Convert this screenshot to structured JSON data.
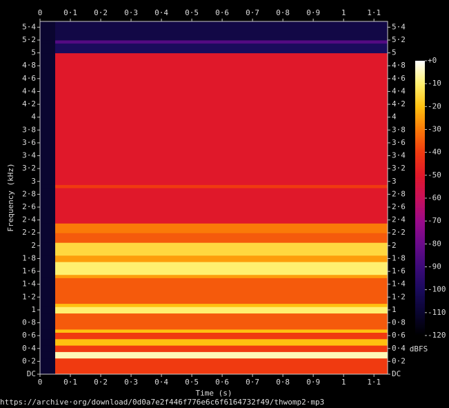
{
  "chart_data": {
    "type": "spectrogram",
    "xlabel": "Time (s)",
    "ylabel": "Frequency (kHz)",
    "colorbar_label": "dBFS",
    "footer": "https://archive·org/download/0d0a7e2f446f776e6c6f6164732f49/thwomp2·mp3",
    "xlim": [
      0,
      1.145
    ],
    "ylim": [
      0,
      5.49
    ],
    "xticks": [
      0,
      {
        "value": 0.1,
        "label": "0·1"
      },
      {
        "value": 0.2,
        "label": "0·2"
      },
      {
        "value": 0.3,
        "label": "0·3"
      },
      {
        "value": 0.4,
        "label": "0·4"
      },
      {
        "value": 0.5,
        "label": "0·5"
      },
      {
        "value": 0.6,
        "label": "0·6"
      },
      {
        "value": 0.7,
        "label": "0·7"
      },
      {
        "value": 0.8,
        "label": "0·8"
      },
      {
        "value": 0.9,
        "label": "0·9"
      },
      1,
      {
        "value": 1.1,
        "label": "1·1"
      }
    ],
    "yticks": [
      {
        "value": 0,
        "label": "DC"
      },
      {
        "value": 0.2,
        "label": "0·2"
      },
      {
        "value": 0.4,
        "label": "0·4"
      },
      {
        "value": 0.6,
        "label": "0·6"
      },
      {
        "value": 0.8,
        "label": "0·8"
      },
      1,
      {
        "value": 1.2,
        "label": "1·2"
      },
      {
        "value": 1.4,
        "label": "1·4"
      },
      {
        "value": 1.6,
        "label": "1·6"
      },
      {
        "value": 1.8,
        "label": "1·8"
      },
      2,
      {
        "value": 2.2,
        "label": "2·2"
      },
      {
        "value": 2.4,
        "label": "2·4"
      },
      {
        "value": 2.6,
        "label": "2·6"
      },
      {
        "value": 2.8,
        "label": "2·8"
      },
      3,
      {
        "value": 3.2,
        "label": "3·2"
      },
      {
        "value": 3.4,
        "label": "3·4"
      },
      {
        "value": 3.6,
        "label": "3·6"
      },
      {
        "value": 3.8,
        "label": "3·8"
      },
      4,
      {
        "value": 4.2,
        "label": "4·2"
      },
      {
        "value": 4.4,
        "label": "4·4"
      },
      {
        "value": 4.6,
        "label": "4·6"
      },
      {
        "value": 4.8,
        "label": "4·8"
      },
      5,
      {
        "value": 5.2,
        "label": "5·2"
      },
      {
        "value": 5.4,
        "label": "5·4"
      }
    ],
    "time_bins": [
      0,
      0.05,
      1.145
    ],
    "freq_bins": [
      0,
      0.25,
      0.35,
      0.45,
      0.55,
      0.65,
      0.7,
      0.95,
      1.05,
      1.1,
      1.5,
      1.55,
      1.75,
      1.85,
      2.05,
      2.2,
      2.35,
      2.9,
      2.95,
      5.0,
      5.15,
      5.2,
      5.49
    ],
    "z": [
      [
        -110,
        -40
      ],
      [
        -110,
        -5
      ],
      [
        -110,
        -40
      ],
      [
        -110,
        -20
      ],
      [
        -110,
        -40
      ],
      [
        -110,
        -20
      ],
      [
        -110,
        -35
      ],
      [
        -110,
        -10
      ],
      [
        -110,
        -20
      ],
      [
        -110,
        -35
      ],
      [
        -110,
        -25
      ],
      [
        -110,
        -10
      ],
      [
        -110,
        -25
      ],
      [
        -110,
        -15
      ],
      [
        -110,
        -35
      ],
      [
        -110,
        -30
      ],
      [
        -110,
        -50
      ],
      [
        -110,
        -40
      ],
      [
        -110,
        -50
      ],
      [
        -110,
        -100
      ],
      [
        -110,
        -85
      ],
      [
        -110,
        -105
      ]
    ],
    "clim": [
      -120,
      0
    ],
    "cticks": [
      {
        "value": 0,
        "label": "+0"
      },
      -10,
      -20,
      -30,
      -40,
      -50,
      -60,
      -70,
      -80,
      -90,
      -100,
      -110,
      -120
    ],
    "colorscale": [
      [
        -120,
        "#000000"
      ],
      [
        -110,
        "#0a0530"
      ],
      [
        -100,
        "#1a0b5c"
      ],
      [
        -90,
        "#3c0a7a"
      ],
      [
        -80,
        "#6a0a8a"
      ],
      [
        -70,
        "#9a0a8a"
      ],
      [
        -60,
        "#c8105a"
      ],
      [
        -50,
        "#e0182a"
      ],
      [
        -40,
        "#f03a10"
      ],
      [
        -30,
        "#fa7a08"
      ],
      [
        -20,
        "#ffc010"
      ],
      [
        -10,
        "#fff070"
      ],
      [
        0,
        "#ffffff"
      ]
    ]
  }
}
